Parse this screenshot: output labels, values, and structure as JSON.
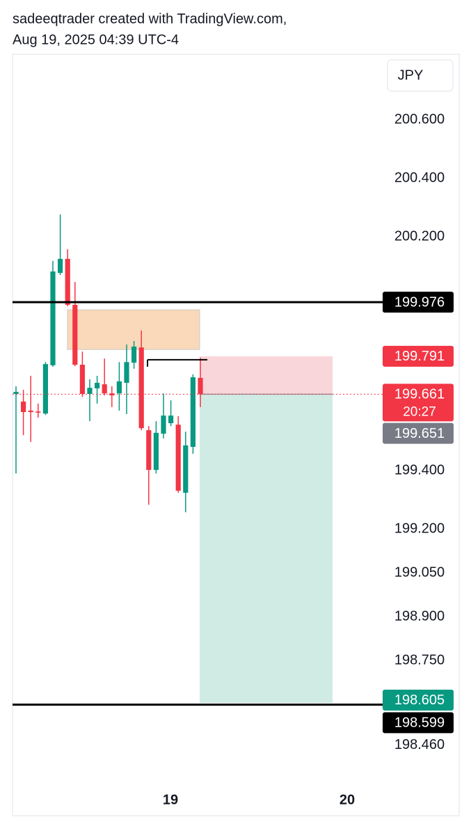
{
  "header": {
    "line1": "sadeeqtrader created with TradingView.com,",
    "line2": "Aug 19, 2025 04:39 UTC-4"
  },
  "chart_data": {
    "type": "candlestick",
    "currency": "JPY",
    "ylim": [
      198.319,
      200.824
    ],
    "yticks": [
      {
        "value": 200.6,
        "label": "200.600"
      },
      {
        "value": 200.4,
        "label": "200.400"
      },
      {
        "value": 200.2,
        "label": "200.200"
      },
      {
        "value": 199.4,
        "label": "199.400"
      },
      {
        "value": 199.2,
        "label": "199.200"
      },
      {
        "value": 199.05,
        "label": "199.050"
      },
      {
        "value": 198.9,
        "label": "198.900"
      },
      {
        "value": 198.75,
        "label": "198.750"
      },
      {
        "value": 198.46,
        "label": "198.460"
      }
    ],
    "xtick_labels": [
      "19",
      "20"
    ],
    "up_color": "#089981",
    "down_color": "#f23645",
    "open": [
      199.662,
      199.636,
      199.605,
      199.602,
      199.595,
      199.76,
      200.076,
      200.124,
      199.967,
      199.762,
      199.662,
      199.681,
      199.695,
      199.664,
      199.664,
      199.7,
      199.769,
      199.821,
      199.538,
      199.402,
      199.526,
      199.562,
      199.557,
      199.324,
      199.481,
      199.717
    ],
    "high": [
      199.688,
      199.676,
      199.724,
      199.629,
      199.771,
      200.117,
      200.276,
      200.157,
      200.045,
      199.807,
      199.712,
      199.724,
      199.783,
      199.688,
      199.771,
      199.831,
      199.843,
      199.879,
      199.552,
      199.569,
      199.664,
      199.64,
      199.586,
      199.533,
      199.729,
      199.786
    ],
    "low": [
      199.39,
      199.521,
      199.498,
      199.581,
      199.59,
      199.755,
      200.069,
      199.962,
      199.757,
      199.652,
      199.569,
      199.629,
      199.657,
      199.617,
      199.605,
      199.593,
      199.748,
      199.538,
      199.283,
      199.39,
      199.51,
      199.552,
      199.324,
      199.257,
      199.457,
      199.617
    ],
    "close": [
      199.669,
      199.6,
      199.6,
      199.598,
      199.764,
      200.081,
      200.124,
      199.967,
      199.762,
      199.662,
      199.683,
      199.7,
      199.664,
      199.657,
      199.705,
      199.771,
      199.824,
      199.545,
      199.402,
      199.529,
      199.588,
      199.588,
      199.331,
      199.486,
      199.719,
      199.661
    ],
    "levels": [
      199.976,
      198.599
    ],
    "supply_zone": {
      "top": 199.95,
      "bottom": 199.814,
      "color": "#f9d9b9"
    },
    "marker_line": 199.779,
    "position": {
      "stop": 199.791,
      "entry": 199.661,
      "target": 198.605,
      "stop_color": "#f9d6da",
      "target_color": "#d0ebe4"
    },
    "price_labels": [
      {
        "value": 199.976,
        "color": "#000000"
      },
      {
        "value": 199.791,
        "color": "#f23645"
      },
      {
        "value": 199.661,
        "color": "#f23645",
        "countdown": "20:27"
      },
      {
        "value": 199.651,
        "color": "#787b86"
      },
      {
        "value": 198.605,
        "color": "#089981"
      },
      {
        "value": 198.599,
        "color": "#000000"
      }
    ]
  }
}
